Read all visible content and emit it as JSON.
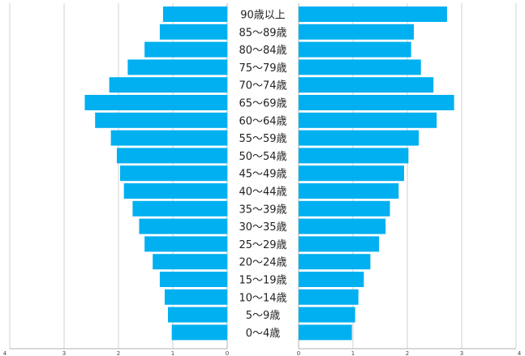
{
  "chart_data": {
    "type": "bar",
    "orientation": "horizontal-pyramid",
    "categories": [
      "90歳以上",
      "85～89歳",
      "80～84歳",
      "75～79歳",
      "70～74歳",
      "65～69歳",
      "60～64歳",
      "55～59歳",
      "50～54歳",
      "45～49歳",
      "40～44歳",
      "35～39歳",
      "30～35歳",
      "25～29歳",
      "20～24歳",
      "15～19歳",
      "10～14歳",
      "5～9歳",
      "0～4歳"
    ],
    "series": [
      {
        "side": "left",
        "values": [
          1.18,
          1.24,
          1.52,
          1.83,
          2.17,
          2.62,
          2.43,
          2.14,
          2.03,
          1.97,
          1.9,
          1.74,
          1.62,
          1.52,
          1.37,
          1.24,
          1.15,
          1.09,
          1.02
        ]
      },
      {
        "side": "right",
        "values": [
          2.73,
          2.12,
          2.07,
          2.25,
          2.48,
          2.86,
          2.54,
          2.21,
          2.02,
          1.94,
          1.84,
          1.68,
          1.6,
          1.48,
          1.32,
          1.2,
          1.1,
          1.04,
          0.98
        ]
      }
    ],
    "left_axis": {
      "ticks": [
        "4",
        "3",
        "2",
        "1",
        "0"
      ],
      "range": [
        4,
        0
      ]
    },
    "right_axis": {
      "ticks": [
        "0",
        "1",
        "2",
        "3",
        "4"
      ],
      "range": [
        0,
        4
      ]
    },
    "grid": true,
    "colors": {
      "bar": "#00b0f0"
    }
  }
}
